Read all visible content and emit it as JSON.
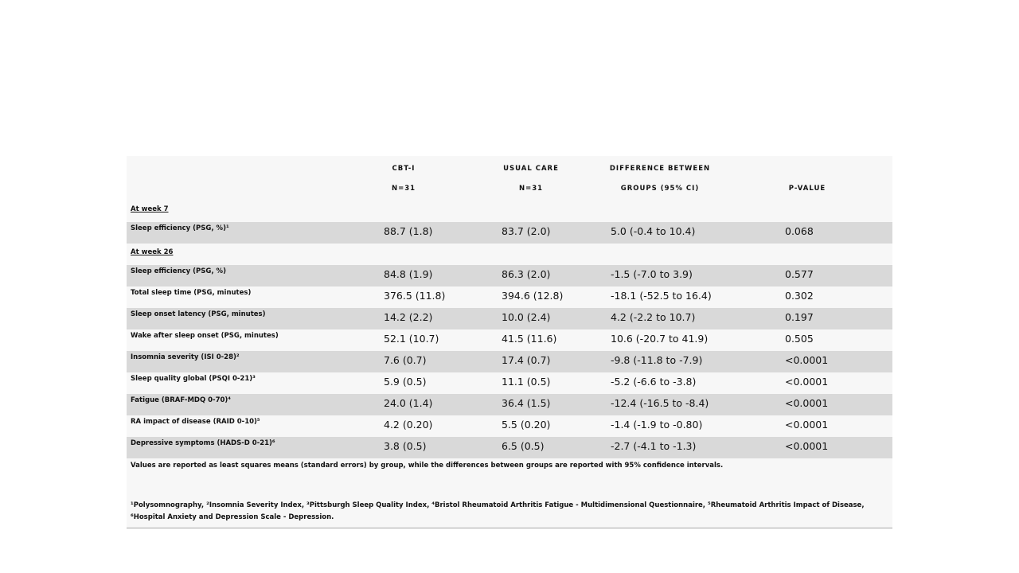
{
  "table": {
    "headers": [
      [
        "CBT-I",
        "N=31"
      ],
      [
        "USUAL CARE",
        "N=31"
      ],
      [
        "DIFFERENCE BETWEEN",
        "GROUPS (95% CI)"
      ],
      [
        "P-VALUE"
      ]
    ],
    "sections": [
      {
        "title": "At week 7",
        "rows": [
          [
            "Sleep efficiency (PSG, %)¹",
            "88.7 (1.8)",
            "83.7 (2.0)",
            "5.0 (-0.4 to 10.4)",
            "0.068"
          ]
        ]
      },
      {
        "title": "At week 26",
        "rows": [
          [
            "Sleep efficiency (PSG, %)",
            "84.8 (1.9)",
            "86.3 (2.0)",
            "-1.5 (-7.0 to 3.9)",
            "0.577"
          ],
          [
            "Total sleep time (PSG, minutes)",
            "376.5 (11.8)",
            "394.6 (12.8)",
            "-18.1 (-52.5 to 16.4)",
            "0.302"
          ],
          [
            "Sleep onset latency (PSG, minutes)",
            "14.2 (2.2)",
            "10.0 (2.4)",
            "4.2 (-2.2 to 10.7)",
            "0.197"
          ],
          [
            "Wake after sleep onset (PSG, minutes)",
            "52.1 (10.7)",
            "41.5 (11.6)",
            "10.6 (-20.7 to 41.9)",
            "0.505"
          ],
          [
            "Insomnia severity (ISI 0-28)²",
            "7.6 (0.7)",
            "17.4 (0.7)",
            "-9.8 (-11.8 to -7.9)",
            "<0.0001"
          ],
          [
            "Sleep quality global (PSQI 0-21)³",
            "5.9 (0.5)",
            "11.1 (0.5)",
            "-5.2 (-6.6 to -3.8)",
            "<0.0001"
          ],
          [
            "Fatigue (BRAF-MDQ 0-70)⁴",
            "24.0 (1.4)",
            "36.4 (1.5)",
            "-12.4 (-16.5 to -8.4)",
            "<0.0001"
          ],
          [
            "RA impact of disease (RAID 0-10)⁵",
            "4.2 (0.20)",
            "5.5 (0.20)",
            "-1.4 (-1.9 to -0.80)",
            "<0.0001"
          ],
          [
            "Depressive symptoms (HADS-D 0-21)⁶",
            "3.8 (0.5)",
            "6.5 (0.5)",
            "-2.7 (-4.1 to -1.3)",
            "<0.0001"
          ]
        ]
      }
    ],
    "note": "Values are reported as least squares means (standard errors) by group, while the differences between groups are reported with 95% confidence intervals.",
    "footnote": "¹Polysomnography, ²Insomnia Severity Index, ³Pittsburgh Sleep Quality Index, ⁴Bristol Rheumatoid Arthritis Fatigue - Multidimensional Questionnaire, ⁵Rheumatoid Arthritis Impact of Disease, ⁶Hospital Anxiety and Depression Scale - Depression."
  }
}
